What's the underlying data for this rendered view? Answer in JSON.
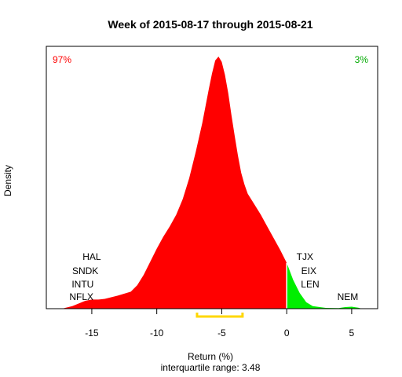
{
  "chart_data": {
    "type": "area",
    "title": "Week of 2015-08-17 through 2015-08-21",
    "xlabel": "Return (%)",
    "ylabel": "Density",
    "subtitle": "interquartile range: 3.48",
    "xlim": [
      -18.5,
      7.0
    ],
    "x_ticks": [
      -15,
      -10,
      -5,
      0,
      5
    ],
    "x_tick_labels": [
      "-15",
      "-10",
      "-5",
      "0",
      "5"
    ],
    "density": {
      "x": [
        -17.3,
        -16.5,
        -15.5,
        -15.0,
        -14.5,
        -14.0,
        -13.0,
        -12.0,
        -11.5,
        -11.0,
        -10.5,
        -10.0,
        -9.5,
        -9.0,
        -8.5,
        -8.0,
        -7.5,
        -7.0,
        -6.5,
        -6.0,
        -5.75,
        -5.5,
        -5.25,
        -5.0,
        -4.75,
        -4.5,
        -4.25,
        -4.0,
        -3.75,
        -3.5,
        -3.25,
        -3.0,
        -2.5,
        -2.0,
        -1.5,
        -1.0,
        -0.5,
        0.0,
        0.5,
        1.0,
        1.5,
        2.0,
        3.0,
        4.0,
        4.5,
        5.0,
        5.5,
        5.8
      ],
      "y": [
        0.0,
        0.02,
        0.06,
        0.07,
        0.07,
        0.075,
        0.1,
        0.13,
        0.18,
        0.26,
        0.36,
        0.46,
        0.55,
        0.63,
        0.72,
        0.84,
        1.0,
        1.2,
        1.42,
        1.68,
        1.8,
        1.9,
        1.93,
        1.89,
        1.79,
        1.65,
        1.48,
        1.32,
        1.17,
        1.04,
        0.95,
        0.88,
        0.8,
        0.72,
        0.63,
        0.54,
        0.45,
        0.35,
        0.22,
        0.12,
        0.05,
        0.02,
        0.006,
        0.005,
        0.012,
        0.015,
        0.008,
        0.0
      ]
    },
    "negative_share": "97%",
    "positive_share": "3%",
    "negative_color": "#ff0000",
    "positive_color": "#00ee00",
    "iqr_color": "#ffd700",
    "iqr": [
      -6.9,
      -3.4
    ],
    "iqr_value": 3.48,
    "labeled_stocks": [
      {
        "ticker": "HAL",
        "x": -15.0,
        "row": 0
      },
      {
        "ticker": "SNDK",
        "x": -15.5,
        "row": 1
      },
      {
        "ticker": "INTU",
        "x": -15.7,
        "row": 2
      },
      {
        "ticker": "NFLX",
        "x": -15.8,
        "row": 3
      },
      {
        "ticker": "TJX",
        "x": 1.4,
        "row": 0
      },
      {
        "ticker": "EIX",
        "x": 1.7,
        "row": 1
      },
      {
        "ticker": "LEN",
        "x": 1.8,
        "row": 2
      },
      {
        "ticker": "NEM",
        "x": 4.7,
        "row": 3
      }
    ]
  }
}
